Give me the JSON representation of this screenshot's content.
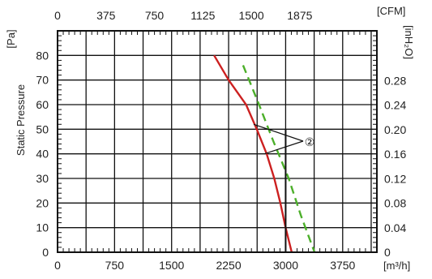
{
  "chart_data": {
    "type": "line",
    "x_bottom": {
      "unit": "[m³/h]",
      "ticks": [
        "0",
        "750",
        "1500",
        "2250",
        "3000",
        "3750"
      ],
      "range": [
        0,
        4200
      ]
    },
    "x_top": {
      "unit": "[CFM]",
      "ticks": [
        "0",
        "375",
        "750",
        "1125",
        "1500",
        "1875"
      ]
    },
    "y_left": {
      "title": "Static Pressure",
      "unit": "[Pa]",
      "ticks": [
        "0",
        "10",
        "20",
        "30",
        "40",
        "50",
        "60",
        "70",
        "80"
      ],
      "range": [
        0,
        90
      ]
    },
    "y_right": {
      "unit": "[inH₂O]",
      "ticks": [
        "0",
        "0.04",
        "0.08",
        "0.12",
        "0.16",
        "0.20",
        "0.24",
        "0.28"
      ]
    },
    "grid": true,
    "series": [
      {
        "style": "solid",
        "color": "#cc2020",
        "points": [
          [
            2060,
            80
          ],
          [
            2250,
            70
          ],
          [
            2480,
            60
          ],
          [
            2620,
            50
          ],
          [
            2750,
            40
          ],
          [
            2850,
            30
          ],
          [
            2930,
            20
          ],
          [
            3000,
            10
          ],
          [
            3080,
            0
          ]
        ]
      },
      {
        "style": "dashed",
        "color": "#4caf2a",
        "points": [
          [
            2440,
            76
          ],
          [
            2650,
            60
          ],
          [
            2840,
            45
          ],
          [
            3040,
            30
          ],
          [
            3200,
            15
          ],
          [
            3380,
            0
          ]
        ]
      }
    ],
    "reference_line": {
      "x": 3000,
      "y_from": 0,
      "y_to": 50,
      "color": "#111111"
    },
    "annotation": {
      "label": "②",
      "targets": [
        [
          2580,
          52
        ],
        [
          2720,
          40
        ]
      ]
    }
  }
}
